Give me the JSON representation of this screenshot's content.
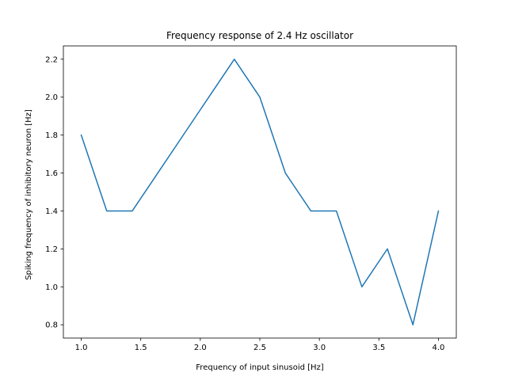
{
  "chart_data": {
    "type": "line",
    "title": "Frequency response of 2.4 Hz oscillator",
    "xlabel": "Frequency of input sinusoid [Hz]",
    "ylabel": "Spiking frequency of inhibitory neuron [Hz]",
    "xlim": [
      0.85,
      4.15
    ],
    "ylim": [
      0.73,
      2.27
    ],
    "xticks": [
      1.0,
      1.5,
      2.0,
      2.5,
      3.0,
      3.5,
      4.0
    ],
    "xtick_labels": [
      "1.0",
      "1.5",
      "2.0",
      "2.5",
      "3.0",
      "3.5",
      "4.0"
    ],
    "yticks": [
      0.8,
      1.0,
      1.2,
      1.4,
      1.6,
      1.8,
      2.0,
      2.2
    ],
    "ytick_labels": [
      "0.8",
      "1.0",
      "1.2",
      "1.4",
      "1.6",
      "1.8",
      "2.0",
      "2.2"
    ],
    "grid": false,
    "series": [
      {
        "color": "#1f77b4",
        "x": [
          1.0,
          1.2143,
          1.4286,
          1.6429,
          1.8571,
          2.0714,
          2.2857,
          2.5,
          2.7143,
          2.9286,
          3.1429,
          3.3571,
          3.5714,
          3.7857,
          4.0
        ],
        "y": [
          1.8,
          1.4,
          1.4,
          1.6,
          1.8,
          2.0,
          2.2,
          2.0,
          1.6,
          1.4,
          1.4,
          1.0,
          1.2,
          0.8,
          1.4
        ]
      }
    ]
  }
}
